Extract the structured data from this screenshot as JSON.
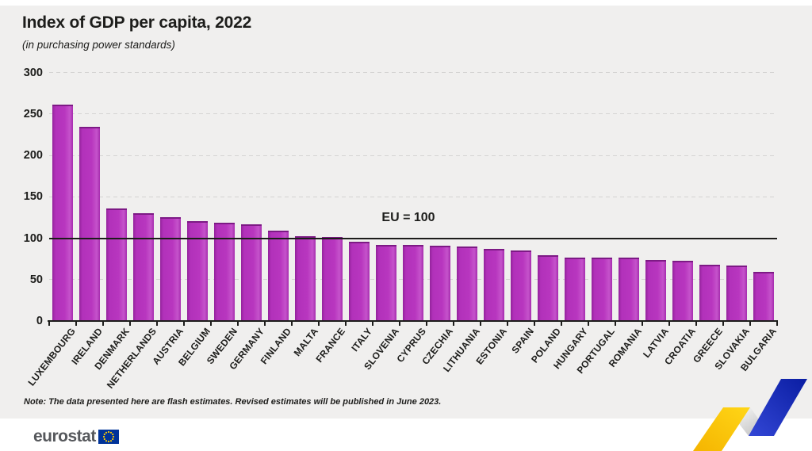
{
  "header": {
    "title": "Index of GDP per capita, 2022",
    "subtitle": "(in purchasing power standards)"
  },
  "chart_data": {
    "type": "bar",
    "title": "Index of GDP per capita, 2022",
    "subtitle": "(in purchasing power standards)",
    "categories": [
      "LUXEMBOURG",
      "IRELAND",
      "DENMARK",
      "NETHERLANDS",
      "AUSTRIA",
      "BELGIUM",
      "SWEDEN",
      "GERMANY",
      "FINLAND",
      "MALTA",
      "FRANCE",
      "ITALY",
      "SLOVENIA",
      "CYPRUS",
      "CZECHIA",
      "LITHUANIA",
      "ESTONIA",
      "SPAIN",
      "POLAND",
      "HUNGARY",
      "PORTUGAL",
      "ROMANIA",
      "LATVIA",
      "CROATIA",
      "GREECE",
      "SLOVAKIA",
      "BULGARIA"
    ],
    "values": [
      261,
      234,
      136,
      130,
      125,
      121,
      119,
      117,
      109,
      102,
      101,
      96,
      92,
      92,
      91,
      90,
      87,
      85,
      79,
      77,
      77,
      77,
      74,
      73,
      68,
      67,
      59
    ],
    "ylim": [
      0,
      300
    ],
    "yticks": [
      0,
      50,
      100,
      150,
      200,
      250,
      300
    ],
    "grid": "horizontal-dashed",
    "legend": "none",
    "reference_line": {
      "value": 100,
      "label": "EU = 100"
    },
    "bar_color": "#b231ba"
  },
  "note": "Note: The data presented here are flash estimates. Revised estimates will be published in June 2023.",
  "footer": {
    "logo_text": "eurostat"
  },
  "colors": {
    "background": "#f0efee",
    "bar": "#b231ba",
    "axis": "#1d1d1b",
    "gridline": "#d4d3d2",
    "logo_gray": "#56585c",
    "flag_blue": "#003399",
    "star_yellow": "#ffcc00",
    "ribbon_yellow": "#fdc608",
    "ribbon_blue": "#1b2cc1"
  }
}
